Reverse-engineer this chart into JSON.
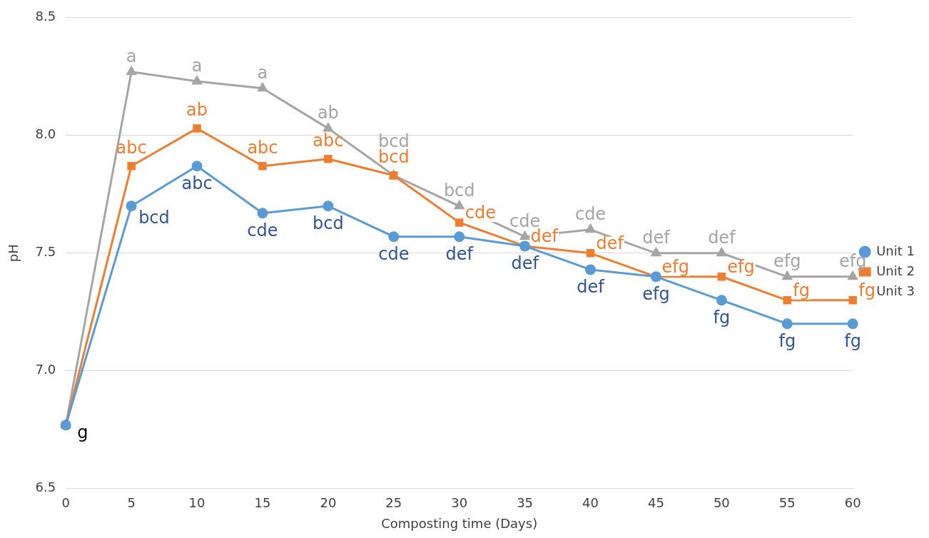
{
  "chart_data": {
    "type": "line",
    "xlabel": "Composting time (Days)",
    "ylabel": "pH",
    "categories": [
      "0",
      "5",
      "10",
      "15",
      "20",
      "25",
      "30",
      "35",
      "40",
      "45",
      "50",
      "55",
      "60"
    ],
    "ylim": [
      6.5,
      8.5
    ],
    "yticks": [
      {
        "value": 6.5,
        "label": "6.5"
      },
      {
        "value": 7,
        "label": "7.0"
      },
      {
        "value": 7.5,
        "label": "7.5"
      },
      {
        "value": 8,
        "label": "8.0"
      },
      {
        "value": 8.5,
        "label": "8.5"
      }
    ],
    "grid": "y",
    "legend": "right",
    "line_style": "solid",
    "series": [
      {
        "name": "Unit 1",
        "color": "#5b9bd5",
        "marker": "circle",
        "values": [
          6.77,
          7.7,
          7.87,
          7.67,
          7.7,
          7.57,
          7.57,
          7.53,
          7.43,
          7.4,
          7.3,
          7.2,
          7.2
        ],
        "value_labels": [
          "g",
          "bcd",
          "abc",
          "cde",
          "bcd",
          "cde",
          "def",
          "def",
          "def",
          "efg",
          "fg",
          "fg",
          "fg"
        ]
      },
      {
        "name": "Unit 2",
        "color": "#ed7d31",
        "marker": "square",
        "values": [
          6.77,
          7.87,
          8.03,
          7.87,
          7.9,
          7.83,
          7.63,
          7.53,
          7.5,
          7.4,
          7.4,
          7.3,
          7.3
        ],
        "value_labels": [
          null,
          "abc",
          "ab",
          "abc",
          "abc",
          "bcd",
          "cde",
          "def",
          "def",
          "efg",
          "efg",
          "fg",
          "fg"
        ]
      },
      {
        "name": "Unit 3",
        "color": "#a5a5a5",
        "marker": "triangle",
        "values": [
          6.77,
          8.27,
          8.23,
          8.2,
          8.03,
          7.83,
          7.7,
          7.57,
          7.6,
          7.5,
          7.5,
          7.4,
          7.4
        ],
        "value_labels": [
          null,
          "a",
          "a",
          "a",
          "ab",
          "bcd",
          "bcd",
          "cde",
          "cde",
          "def",
          "def",
          "efg",
          "efg"
        ]
      }
    ]
  }
}
